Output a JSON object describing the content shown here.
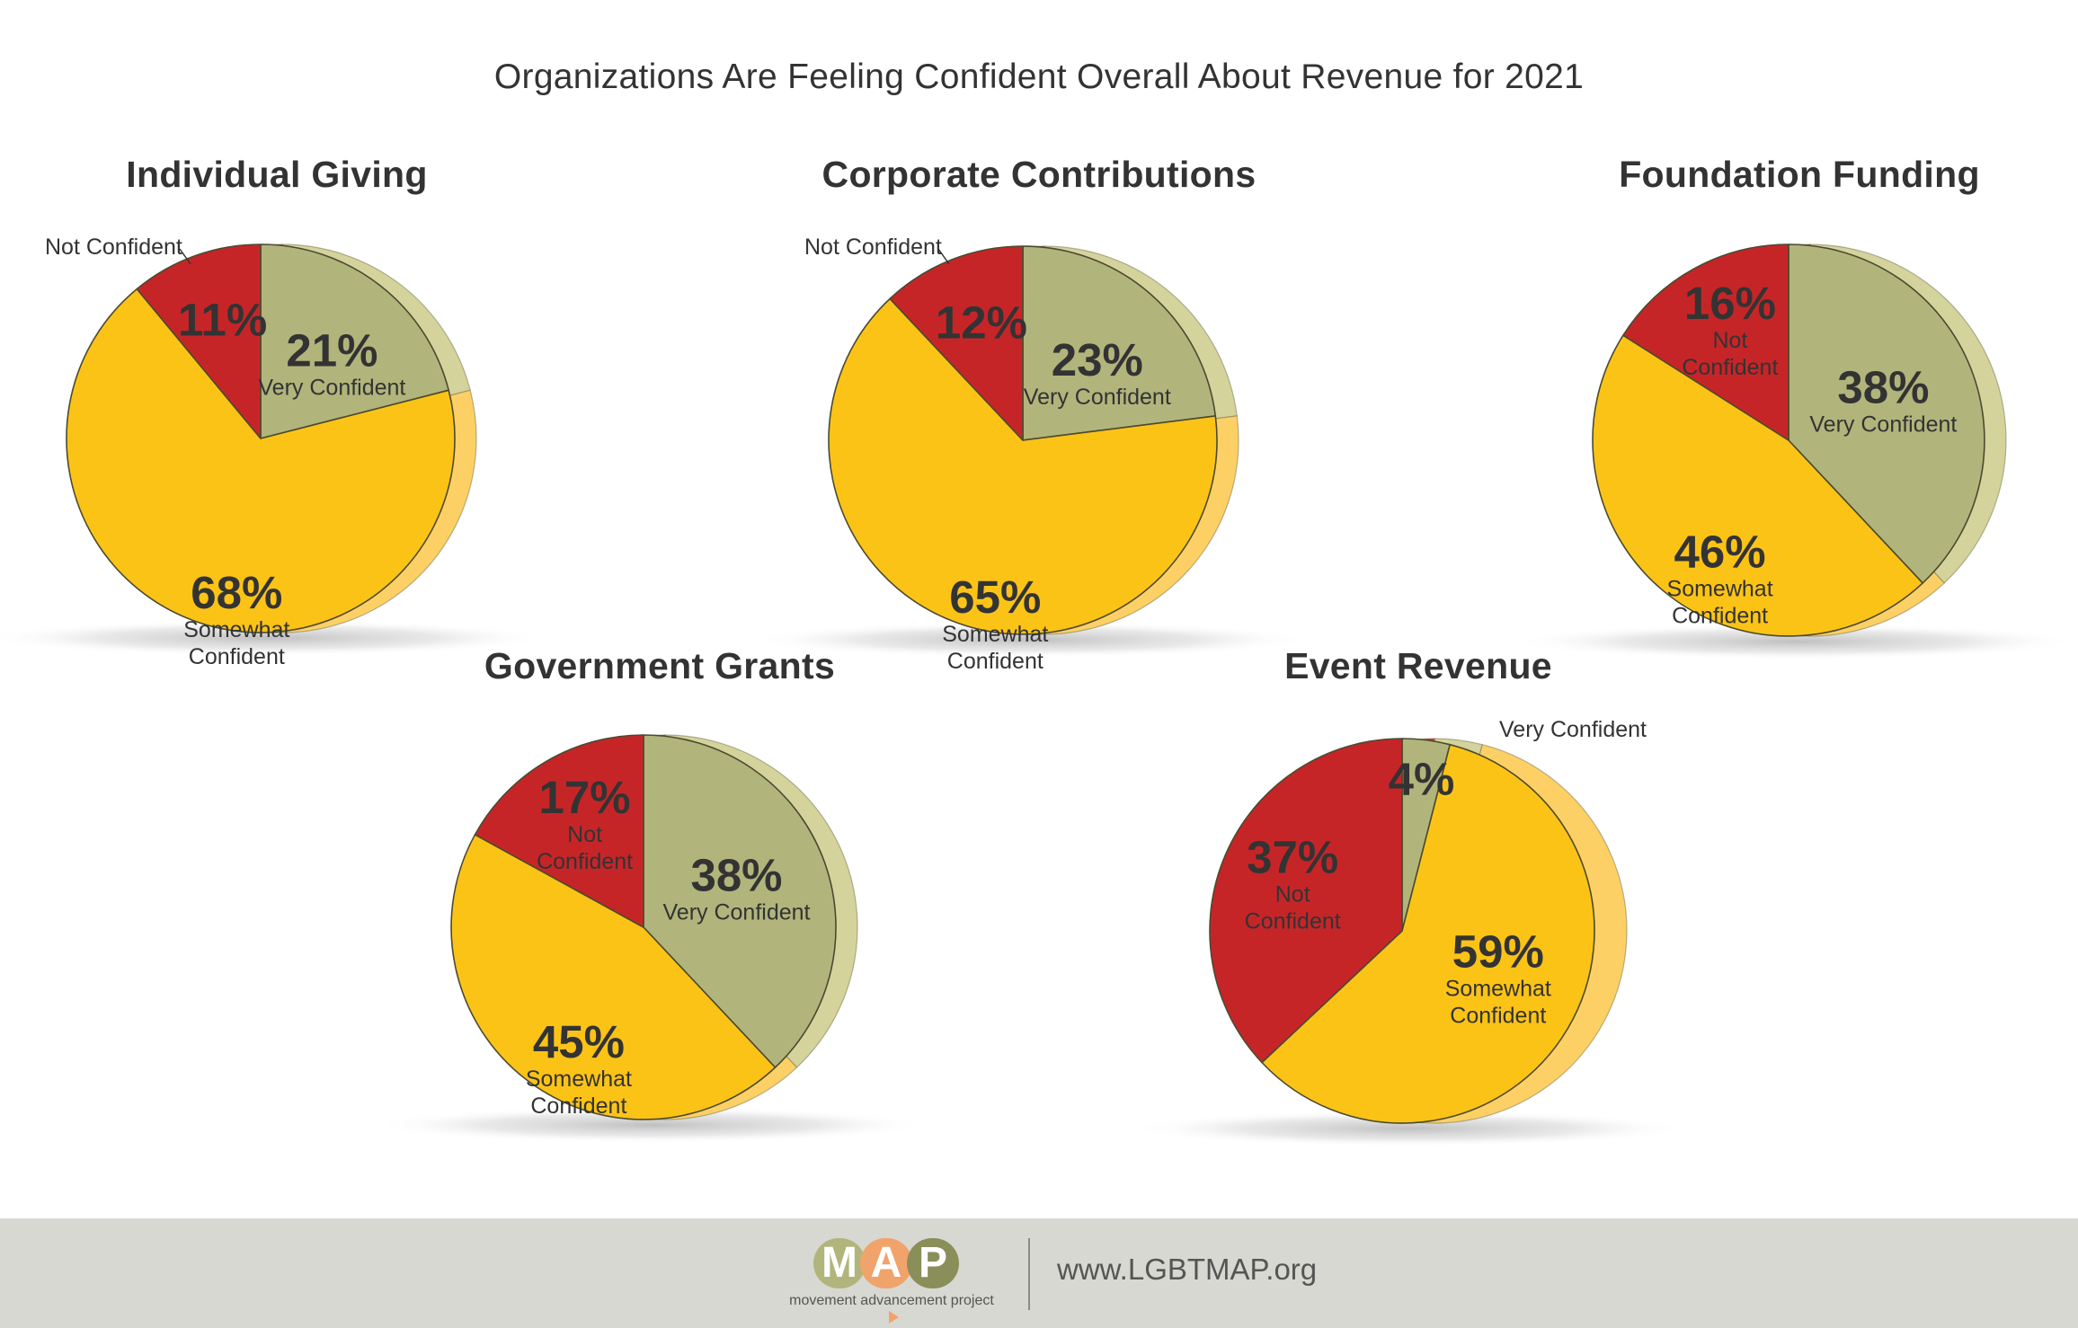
{
  "title": "Organizations Are Feeling Confident Overall About Revenue for 2021",
  "colors": {
    "very_confident": "#b1b57b",
    "somewhat_confident": "#fcc317",
    "not_confident": "#c62528",
    "very_confident_edge": "#d4d39c",
    "somewhat_confident_edge": "#fdd065",
    "not_confident_edge": "#dd2c2f"
  },
  "chart_data": [
    {
      "type": "pie",
      "title": "Individual Giving",
      "slices": [
        {
          "key": "very_confident",
          "value": 21,
          "pct_label": "21%",
          "label_lines": [
            "Very Confident"
          ]
        },
        {
          "key": "somewhat_confident",
          "value": 68,
          "pct_label": "68%",
          "label_lines": [
            "Somewhat",
            "Confident"
          ]
        },
        {
          "key": "not_confident",
          "value": 11,
          "pct_label": "11%",
          "label_lines": [],
          "external_label": "Not Confident"
        }
      ]
    },
    {
      "type": "pie",
      "title": "Corporate Contributions",
      "slices": [
        {
          "key": "very_confident",
          "value": 23,
          "pct_label": "23%",
          "label_lines": [
            "Very Confident"
          ]
        },
        {
          "key": "somewhat_confident",
          "value": 65,
          "pct_label": "65%",
          "label_lines": [
            "Somewhat",
            "Confident"
          ]
        },
        {
          "key": "not_confident",
          "value": 12,
          "pct_label": "12%",
          "label_lines": [],
          "external_label": "Not Confident"
        }
      ]
    },
    {
      "type": "pie",
      "title": "Foundation Funding",
      "slices": [
        {
          "key": "very_confident",
          "value": 38,
          "pct_label": "38%",
          "label_lines": [
            "Very Confident"
          ]
        },
        {
          "key": "somewhat_confident",
          "value": 46,
          "pct_label": "46%",
          "label_lines": [
            "Somewhat",
            "Confident"
          ]
        },
        {
          "key": "not_confident",
          "value": 16,
          "pct_label": "16%",
          "label_lines": [
            "Not",
            "Confident"
          ]
        }
      ]
    },
    {
      "type": "pie",
      "title": "Government Grants",
      "slices": [
        {
          "key": "very_confident",
          "value": 38,
          "pct_label": "38%",
          "label_lines": [
            "Very Confident"
          ]
        },
        {
          "key": "somewhat_confident",
          "value": 45,
          "pct_label": "45%",
          "label_lines": [
            "Somewhat",
            "Confident"
          ]
        },
        {
          "key": "not_confident",
          "value": 17,
          "pct_label": "17%",
          "label_lines": [
            "Not",
            "Confident"
          ]
        }
      ]
    },
    {
      "type": "pie",
      "title": "Event Revenue",
      "slices": [
        {
          "key": "very_confident",
          "value": 4,
          "pct_label": "4%",
          "label_lines": [],
          "external_label": "Very Confident"
        },
        {
          "key": "somewhat_confident",
          "value": 59,
          "pct_label": "59%",
          "label_lines": [
            "Somewhat",
            "Confident"
          ]
        },
        {
          "key": "not_confident",
          "value": 37,
          "pct_label": "37%",
          "label_lines": [
            "Not",
            "Confident"
          ]
        }
      ]
    }
  ],
  "footer": {
    "logo_letters": [
      "M",
      "A",
      "P"
    ],
    "logo_letter_colors": [
      "#b1b57b",
      "#f0a36a",
      "#8a8f5a"
    ],
    "logo_caption": "movement advancement project",
    "url": "www.LGBTMAP.org"
  }
}
